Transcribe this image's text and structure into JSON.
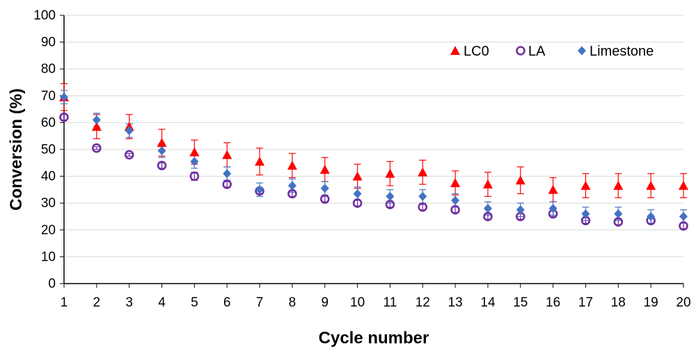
{
  "chart_data": {
    "type": "scatter",
    "title": "",
    "xlabel": "Cycle number",
    "ylabel": "Conversion (%)",
    "xlim": [
      1,
      20
    ],
    "ylim": [
      0,
      100
    ],
    "x_ticks": [
      "1",
      "2",
      "3",
      "4",
      "5",
      "6",
      "7",
      "8",
      "9",
      "10",
      "11",
      "12",
      "13",
      "14",
      "15",
      "16",
      "17",
      "18",
      "19",
      "20"
    ],
    "y_ticks": [
      "0",
      "10",
      "20",
      "30",
      "40",
      "50",
      "60",
      "70",
      "80",
      "90",
      "100"
    ],
    "grid": "horizontal",
    "legend_position": "top-right",
    "x": [
      1,
      2,
      3,
      4,
      5,
      6,
      7,
      8,
      9,
      10,
      11,
      12,
      13,
      14,
      15,
      16,
      17,
      18,
      19,
      20
    ],
    "series": [
      {
        "name": "LC0",
        "marker": "triangle",
        "color": "#ff0000",
        "values": [
          69.5,
          58.5,
          58.5,
          52.5,
          49,
          48,
          45.5,
          44,
          42.5,
          40,
          41,
          41.5,
          37.5,
          37,
          38.5,
          35,
          36.5,
          36.5,
          36.5,
          36.5
        ],
        "error": [
          5,
          4.5,
          4.5,
          5,
          4.5,
          4.5,
          5,
          4.5,
          4.5,
          4.5,
          4.5,
          4.5,
          4.5,
          4.5,
          5,
          4.5,
          4.5,
          4.5,
          4.5,
          4.5
        ]
      },
      {
        "name": "LA",
        "marker": "open-circle",
        "color": "#7030a0",
        "values": [
          62,
          50.5,
          48,
          44,
          40,
          37,
          34.5,
          33.5,
          31.5,
          30,
          29.5,
          28.5,
          27.5,
          25,
          25,
          26,
          23.5,
          23,
          23.5,
          21.5
        ],
        "error": [
          1,
          0.5,
          0.5,
          1,
          1.5,
          1,
          1,
          1,
          1,
          1,
          1,
          1,
          1,
          1,
          1,
          1,
          1,
          1,
          1,
          1
        ]
      },
      {
        "name": "Limestone",
        "marker": "diamond",
        "color": "#4472c4",
        "values": [
          69.5,
          61,
          57,
          49.5,
          45.5,
          41,
          35,
          36.5,
          35.5,
          33.5,
          32.5,
          32.5,
          31,
          28,
          27.5,
          28,
          26,
          26,
          25,
          25
        ],
        "error": [
          2.5,
          2.5,
          2.5,
          2.5,
          2.5,
          2.5,
          2.5,
          2.5,
          2.5,
          2.5,
          2.5,
          2.5,
          2.5,
          2.5,
          2.5,
          2.5,
          2.5,
          2.5,
          2.5,
          2.5
        ]
      }
    ]
  }
}
